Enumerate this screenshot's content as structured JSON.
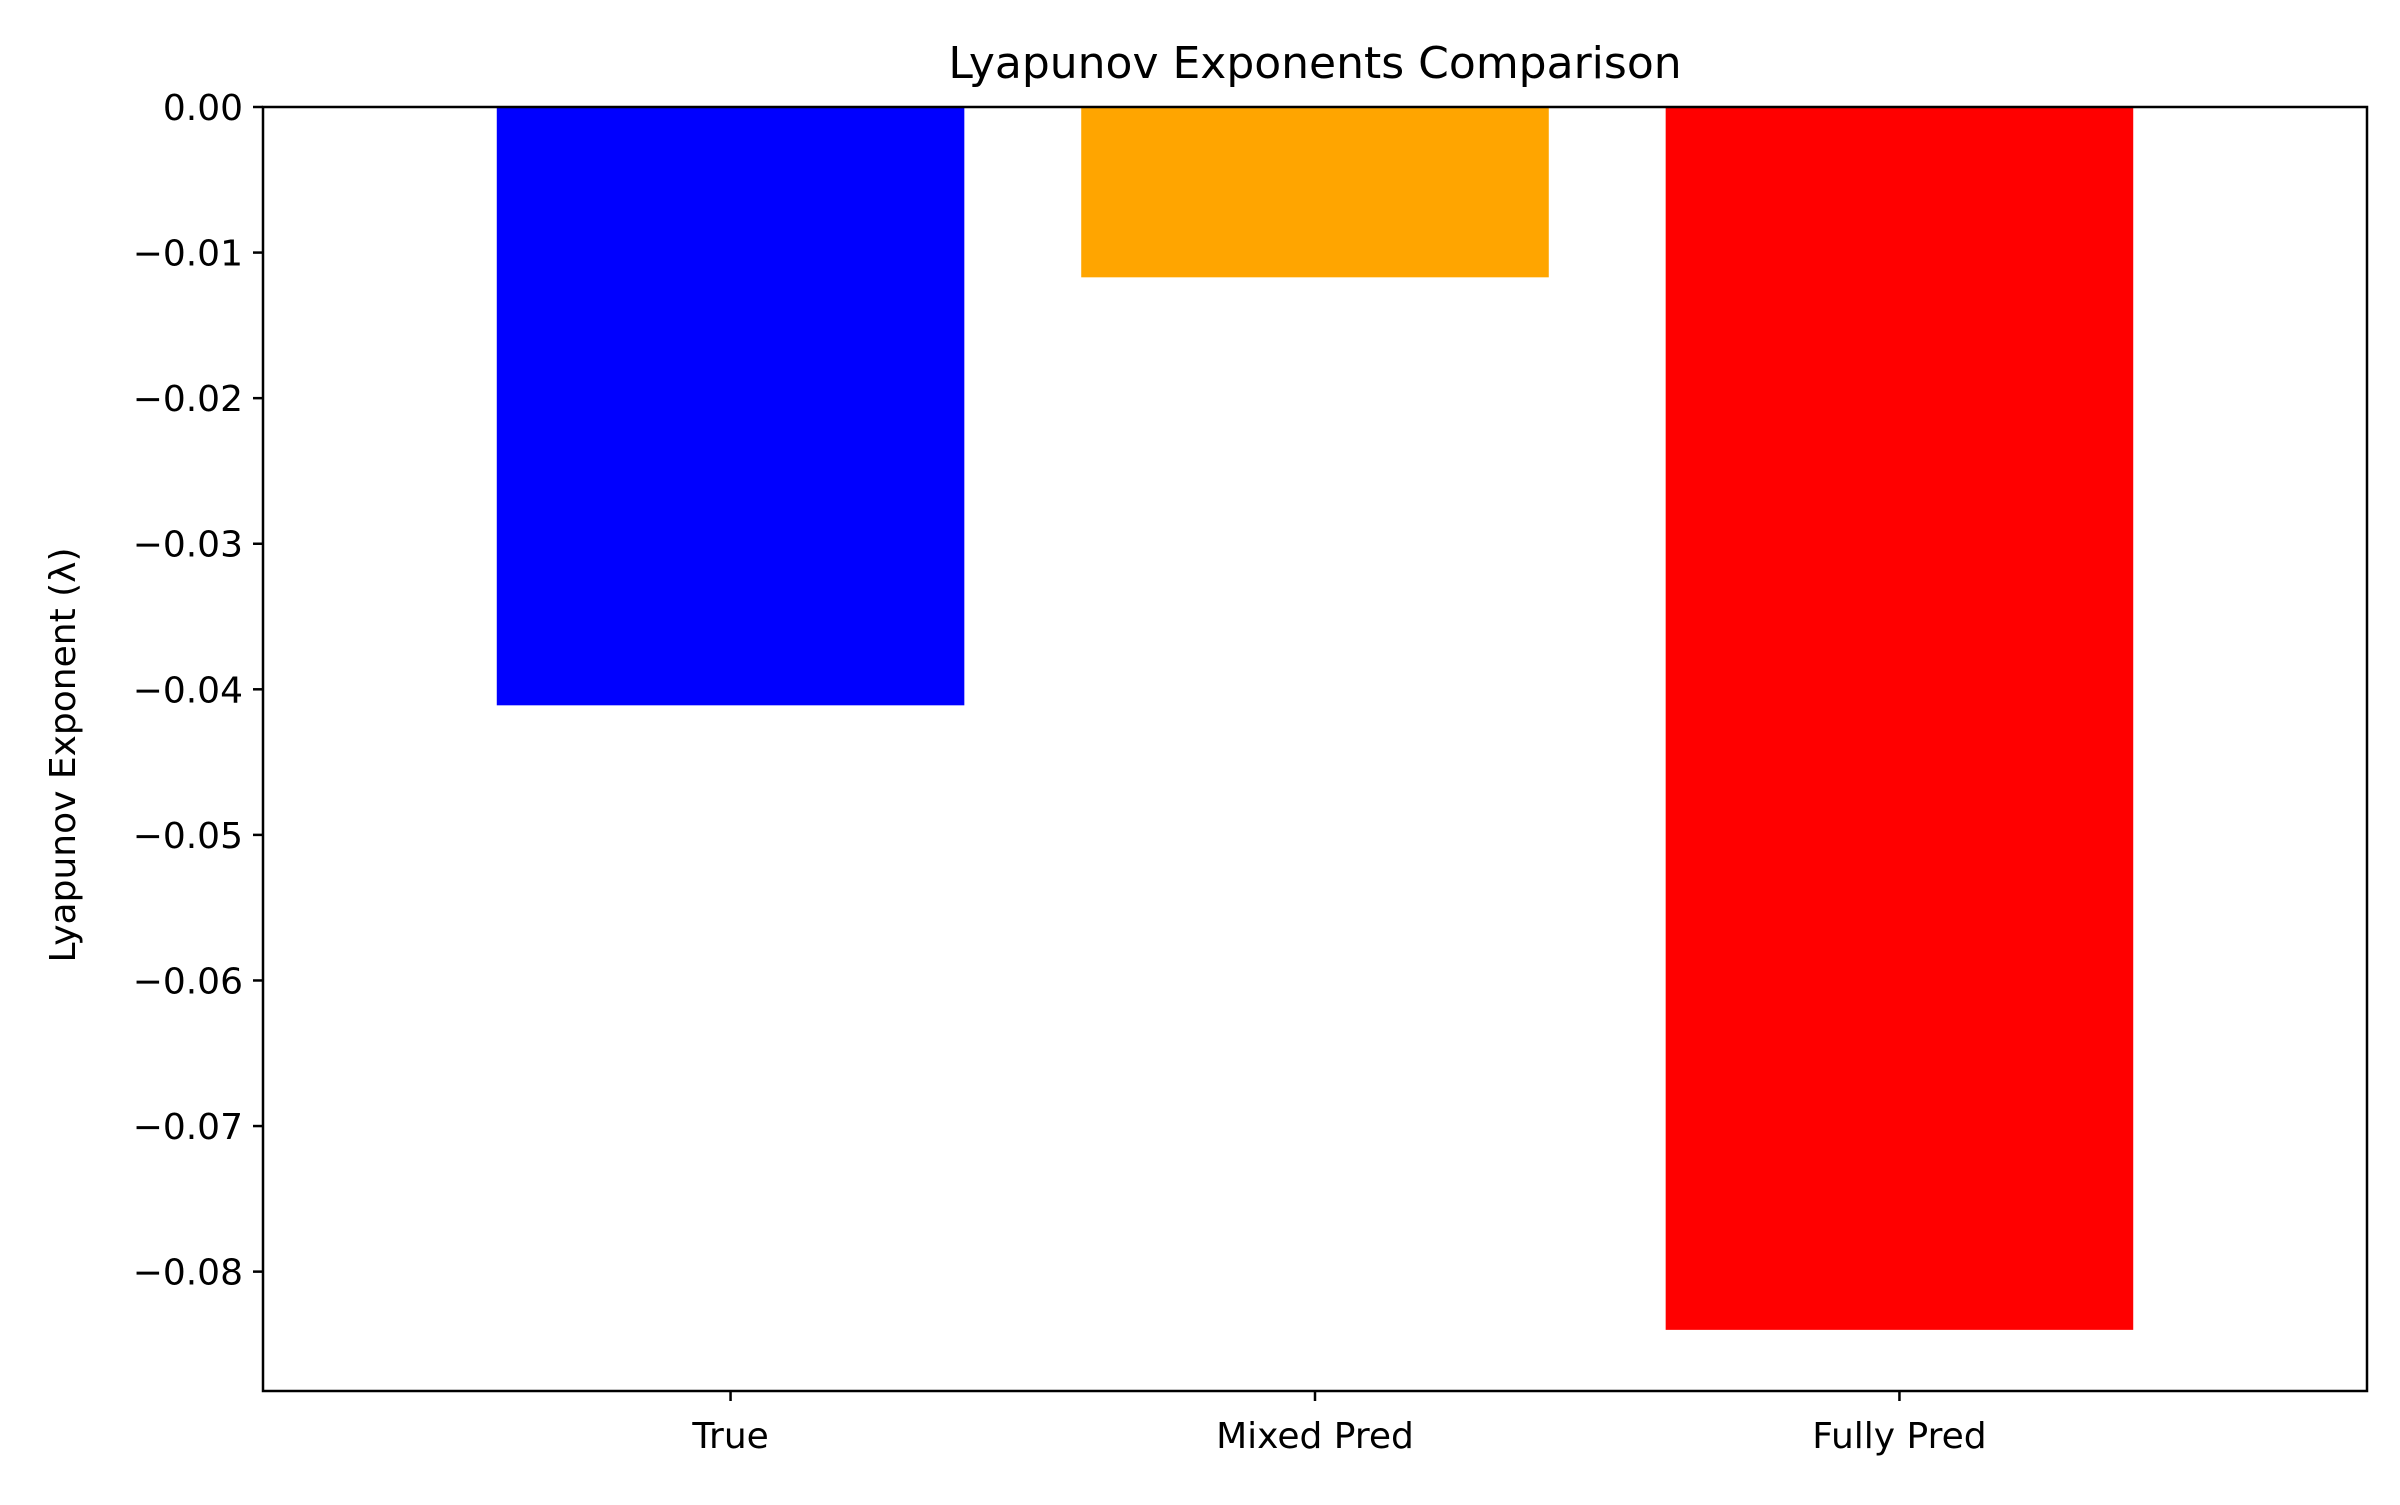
{
  "chart_data": {
    "type": "bar",
    "title": "Lyapunov Exponents Comparison",
    "xlabel": "",
    "ylabel": "Lyapunov Exponent (λ)",
    "categories": [
      "True",
      "Mixed Pred",
      "Fully Pred"
    ],
    "values": [
      -0.0411,
      -0.0117,
      -0.084
    ],
    "colors": [
      "#0000ff",
      "#ffa500",
      "#ff0000"
    ],
    "ylim": [
      -0.0882,
      0.0
    ],
    "yticks": [
      0.0,
      -0.01,
      -0.02,
      -0.03,
      -0.04,
      -0.05,
      -0.06,
      -0.07,
      -0.08
    ],
    "ytick_labels": [
      "0.00",
      "−0.01",
      "−0.02",
      "−0.03",
      "−0.04",
      "−0.05",
      "−0.06",
      "−0.07",
      "−0.08"
    ],
    "grid": false,
    "legend": "none"
  }
}
